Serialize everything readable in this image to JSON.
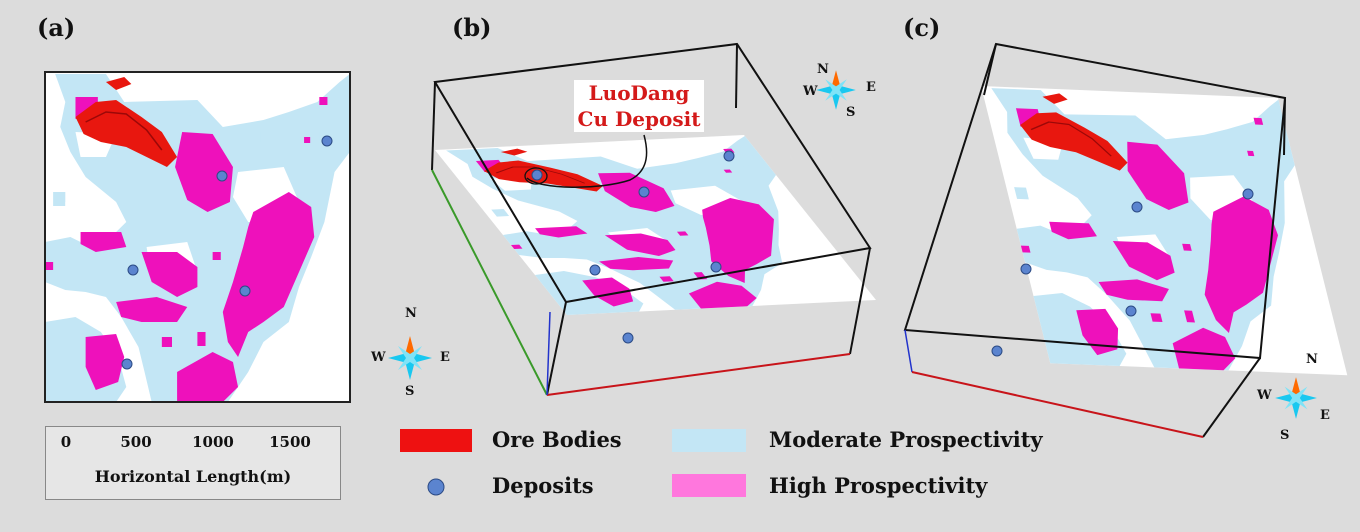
{
  "panels": {
    "a": {
      "label": "(a)"
    },
    "b": {
      "label": "(b)"
    },
    "c": {
      "label": "(c)"
    }
  },
  "callout": {
    "line1": "LuoDang",
    "line2": "Cu Deposit"
  },
  "compass": {
    "north": "N",
    "south": "S",
    "east": "E",
    "west": "W"
  },
  "scale_bar": {
    "ticks": [
      "0",
      "500",
      "1000",
      "1500"
    ],
    "caption": "Horizontal Length(m)"
  },
  "legend": {
    "ore_bodies": {
      "label": "Ore Bodies",
      "color": "#ee1111"
    },
    "deposits": {
      "label": "Deposits",
      "color": "#5b84cf"
    },
    "moderate": {
      "label": "Moderate Prospectivity",
      "color": "#c3e6f5"
    },
    "high": {
      "label": "High Prospectivity",
      "color": "#ff3fcc"
    }
  },
  "colors": {
    "background": "#dcdcdc",
    "map_base": "#ffffff",
    "moderate": "#c3e6f5",
    "high": "#ee11bb",
    "ore": "#e8170f",
    "deposit": "#5b84cf",
    "compass_north": "#ff6a00",
    "compass_body": "#19c8f0"
  }
}
